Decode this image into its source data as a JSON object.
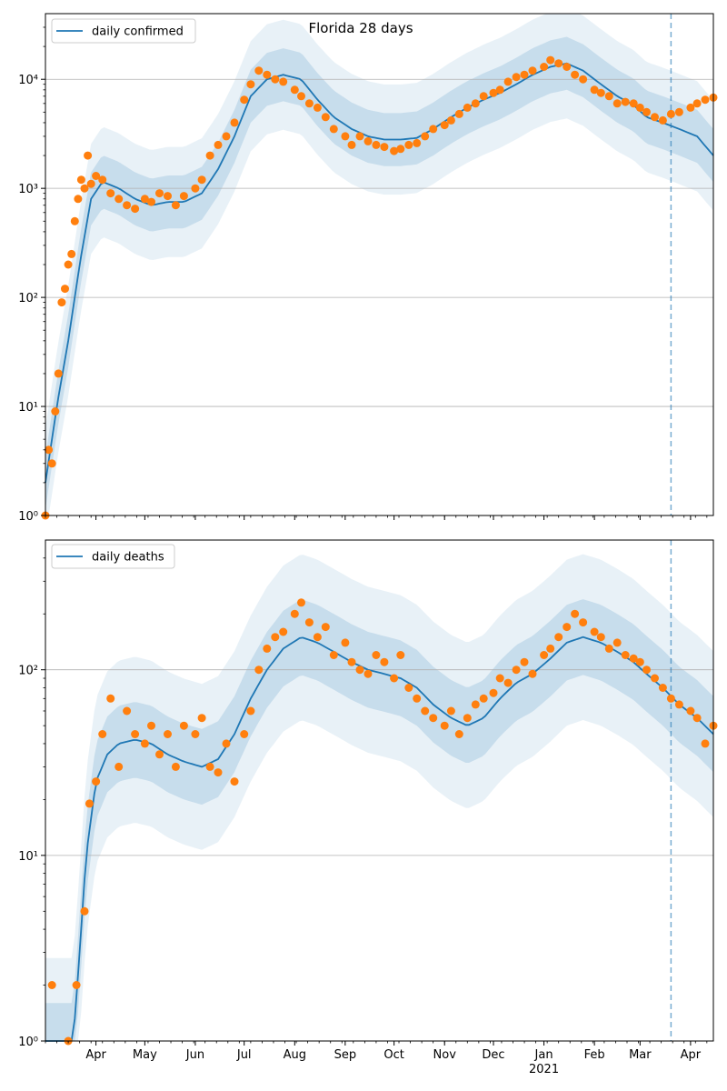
{
  "figure_title": "Florida 28 days",
  "colors": {
    "model_line": "#1f77b4",
    "band": "#1f77b4",
    "observed": "#ff7f0e",
    "grid": "#b0b0b0",
    "forecast_marker": "#1f77b4"
  },
  "chart_data": [
    {
      "type": "line",
      "title": "Florida 28 days",
      "legend": [
        "daily confirmed"
      ],
      "legend_placement": "top-left",
      "yscale": "log",
      "ylim": [
        1,
        40000
      ],
      "yticks": [
        {
          "value": 1,
          "label": "10⁰"
        },
        {
          "value": 10,
          "label": "10¹"
        },
        {
          "value": 100,
          "label": "10²"
        },
        {
          "value": 1000,
          "label": "10³"
        },
        {
          "value": 10000,
          "label": "10⁴"
        }
      ],
      "grid": "horizontal",
      "xlim": [
        "2020-03-01",
        "2021-04-15"
      ],
      "forecast_start": "2021-03-20",
      "series": [
        {
          "name": "daily confirmed",
          "kind": "model-median",
          "x": [
            "2020-03-01",
            "2020-03-08",
            "2020-03-15",
            "2020-03-22",
            "2020-03-29",
            "2020-04-05",
            "2020-04-15",
            "2020-04-25",
            "2020-05-05",
            "2020-05-15",
            "2020-05-25",
            "2020-06-05",
            "2020-06-15",
            "2020-06-25",
            "2020-07-05",
            "2020-07-15",
            "2020-07-25",
            "2020-08-05",
            "2020-08-15",
            "2020-08-25",
            "2020-09-05",
            "2020-09-15",
            "2020-09-25",
            "2020-10-05",
            "2020-10-15",
            "2020-10-25",
            "2020-11-05",
            "2020-11-15",
            "2020-11-25",
            "2020-12-05",
            "2020-12-15",
            "2020-12-25",
            "2021-01-05",
            "2021-01-15",
            "2021-01-25",
            "2021-02-05",
            "2021-02-15",
            "2021-02-25",
            "2021-03-05",
            "2021-03-15",
            "2021-03-25",
            "2021-04-05",
            "2021-04-15"
          ],
          "y": [
            2,
            10,
            40,
            200,
            800,
            1150,
            1000,
            800,
            700,
            750,
            750,
            900,
            1500,
            3000,
            7000,
            10000,
            11000,
            10000,
            6500,
            4500,
            3500,
            3000,
            2800,
            2800,
            2900,
            3500,
            4500,
            5500,
            6500,
            7500,
            9000,
            11000,
            13000,
            14000,
            12000,
            9000,
            7000,
            5800,
            4500,
            4000,
            3500,
            3000,
            2000
          ]
        },
        {
          "name": "observed daily confirmed",
          "kind": "points",
          "x": [
            "2020-03-01",
            "2020-03-03",
            "2020-03-05",
            "2020-03-07",
            "2020-03-09",
            "2020-03-11",
            "2020-03-13",
            "2020-03-15",
            "2020-03-17",
            "2020-03-19",
            "2020-03-21",
            "2020-03-23",
            "2020-03-25",
            "2020-03-27",
            "2020-03-29",
            "2020-04-01",
            "2020-04-05",
            "2020-04-10",
            "2020-04-15",
            "2020-04-20",
            "2020-04-25",
            "2020-05-01",
            "2020-05-05",
            "2020-05-10",
            "2020-05-15",
            "2020-05-20",
            "2020-05-25",
            "2020-06-01",
            "2020-06-05",
            "2020-06-10",
            "2020-06-15",
            "2020-06-20",
            "2020-06-25",
            "2020-07-01",
            "2020-07-05",
            "2020-07-10",
            "2020-07-15",
            "2020-07-20",
            "2020-07-25",
            "2020-08-01",
            "2020-08-05",
            "2020-08-10",
            "2020-08-15",
            "2020-08-20",
            "2020-08-25",
            "2020-09-01",
            "2020-09-05",
            "2020-09-10",
            "2020-09-15",
            "2020-09-20",
            "2020-09-25",
            "2020-10-01",
            "2020-10-05",
            "2020-10-10",
            "2020-10-15",
            "2020-10-20",
            "2020-10-25",
            "2020-11-01",
            "2020-11-05",
            "2020-11-10",
            "2020-11-15",
            "2020-11-20",
            "2020-11-25",
            "2020-12-01",
            "2020-12-05",
            "2020-12-10",
            "2020-12-15",
            "2020-12-20",
            "2020-12-25",
            "2021-01-01",
            "2021-01-05",
            "2021-01-10",
            "2021-01-15",
            "2021-01-20",
            "2021-01-25",
            "2021-02-01",
            "2021-02-05",
            "2021-02-10",
            "2021-02-15",
            "2021-02-20",
            "2021-02-25",
            "2021-03-01",
            "2021-03-05",
            "2021-03-10",
            "2021-03-15",
            "2021-03-20",
            "2021-03-25",
            "2021-04-01",
            "2021-04-05",
            "2021-04-10",
            "2021-04-15"
          ],
          "y": [
            1,
            4,
            3,
            9,
            20,
            90,
            120,
            200,
            250,
            500,
            800,
            1200,
            1000,
            2000,
            1100,
            1300,
            1200,
            900,
            800,
            700,
            650,
            800,
            750,
            900,
            850,
            700,
            850,
            1000,
            1200,
            2000,
            2500,
            3000,
            4000,
            6500,
            9000,
            12000,
            11000,
            10000,
            9500,
            8000,
            7000,
            6000,
            5500,
            4500,
            3500,
            3000,
            2500,
            3000,
            2700,
            2500,
            2400,
            2200,
            2300,
            2500,
            2600,
            3000,
            3500,
            3800,
            4200,
            4800,
            5500,
            6000,
            7000,
            7500,
            8000,
            9500,
            10500,
            11000,
            12000,
            13000,
            15000,
            14000,
            13000,
            11000,
            10000,
            8000,
            7500,
            7000,
            6000,
            6200,
            6000,
            5500,
            5000,
            4500,
            4200,
            4800,
            5000,
            5500,
            6000,
            6500,
            6800
          ]
        }
      ]
    },
    {
      "type": "line",
      "title": "",
      "legend": [
        "daily deaths"
      ],
      "legend_placement": "top-left",
      "yscale": "log",
      "ylim": [
        1,
        500
      ],
      "yticks": [
        {
          "value": 1,
          "label": "10⁰"
        },
        {
          "value": 10,
          "label": "10¹"
        },
        {
          "value": 100,
          "label": "10²"
        }
      ],
      "grid": "horizontal",
      "xlim": [
        "2020-03-01",
        "2021-04-15"
      ],
      "xticks": [
        {
          "date": "2020-04-01",
          "label": "Apr"
        },
        {
          "date": "2020-05-01",
          "label": "May"
        },
        {
          "date": "2020-06-01",
          "label": "Jun"
        },
        {
          "date": "2020-07-01",
          "label": "Jul"
        },
        {
          "date": "2020-08-01",
          "label": "Aug"
        },
        {
          "date": "2020-09-01",
          "label": "Sep"
        },
        {
          "date": "2020-10-01",
          "label": "Oct"
        },
        {
          "date": "2020-11-01",
          "label": "Nov"
        },
        {
          "date": "2020-12-01",
          "label": "Dec"
        },
        {
          "date": "2021-01-01",
          "label": "Jan"
        },
        {
          "date": "2021-02-01",
          "label": "Feb"
        },
        {
          "date": "2021-03-01",
          "label": "Mar"
        },
        {
          "date": "2021-04-01",
          "label": "Apr"
        }
      ],
      "year_label": {
        "date": "2021-01-01",
        "label": "2021"
      },
      "forecast_start": "2021-03-20",
      "series": [
        {
          "name": "daily deaths",
          "kind": "model-median",
          "x": [
            "2020-03-01",
            "2020-03-12",
            "2020-03-18",
            "2020-03-22",
            "2020-03-26",
            "2020-04-01",
            "2020-04-08",
            "2020-04-15",
            "2020-04-25",
            "2020-05-05",
            "2020-05-15",
            "2020-05-25",
            "2020-06-05",
            "2020-06-15",
            "2020-06-25",
            "2020-07-05",
            "2020-07-15",
            "2020-07-25",
            "2020-08-05",
            "2020-08-15",
            "2020-08-25",
            "2020-09-05",
            "2020-09-15",
            "2020-09-25",
            "2020-10-05",
            "2020-10-15",
            "2020-10-25",
            "2020-11-05",
            "2020-11-15",
            "2020-11-25",
            "2020-12-05",
            "2020-12-15",
            "2020-12-25",
            "2021-01-05",
            "2021-01-15",
            "2021-01-25",
            "2021-02-05",
            "2021-02-15",
            "2021-02-25",
            "2021-03-05",
            "2021-03-15",
            "2021-03-25",
            "2021-04-05",
            "2021-04-15"
          ],
          "y": [
            1,
            1,
            1,
            3,
            10,
            25,
            35,
            40,
            42,
            40,
            35,
            32,
            30,
            33,
            45,
            70,
            100,
            130,
            150,
            140,
            125,
            110,
            100,
            95,
            90,
            80,
            65,
            55,
            50,
            55,
            70,
            85,
            95,
            115,
            140,
            150,
            140,
            125,
            110,
            95,
            80,
            65,
            55,
            45
          ]
        },
        {
          "name": "observed daily deaths",
          "kind": "points",
          "x": [
            "2020-03-05",
            "2020-03-15",
            "2020-03-20",
            "2020-03-25",
            "2020-03-28",
            "2020-04-01",
            "2020-04-05",
            "2020-04-10",
            "2020-04-15",
            "2020-04-20",
            "2020-04-25",
            "2020-05-01",
            "2020-05-05",
            "2020-05-10",
            "2020-05-15",
            "2020-05-20",
            "2020-05-25",
            "2020-06-01",
            "2020-06-05",
            "2020-06-10",
            "2020-06-15",
            "2020-06-20",
            "2020-06-25",
            "2020-07-01",
            "2020-07-05",
            "2020-07-10",
            "2020-07-15",
            "2020-07-20",
            "2020-07-25",
            "2020-08-01",
            "2020-08-05",
            "2020-08-10",
            "2020-08-15",
            "2020-08-20",
            "2020-08-25",
            "2020-09-01",
            "2020-09-05",
            "2020-09-10",
            "2020-09-15",
            "2020-09-20",
            "2020-09-25",
            "2020-10-01",
            "2020-10-05",
            "2020-10-10",
            "2020-10-15",
            "2020-10-20",
            "2020-10-25",
            "2020-11-01",
            "2020-11-05",
            "2020-11-10",
            "2020-11-15",
            "2020-11-20",
            "2020-11-25",
            "2020-12-01",
            "2020-12-05",
            "2020-12-10",
            "2020-12-15",
            "2020-12-20",
            "2020-12-25",
            "2021-01-01",
            "2021-01-05",
            "2021-01-10",
            "2021-01-15",
            "2021-01-20",
            "2021-01-25",
            "2021-02-01",
            "2021-02-05",
            "2021-02-10",
            "2021-02-15",
            "2021-02-20",
            "2021-02-25",
            "2021-03-01",
            "2021-03-05",
            "2021-03-10",
            "2021-03-15",
            "2021-03-20",
            "2021-03-25",
            "2021-04-01",
            "2021-04-05",
            "2021-04-10",
            "2021-04-15"
          ],
          "y": [
            2,
            1,
            2,
            5,
            19,
            25,
            45,
            70,
            30,
            60,
            45,
            40,
            50,
            35,
            45,
            30,
            50,
            45,
            55,
            30,
            28,
            40,
            25,
            45,
            60,
            100,
            130,
            150,
            160,
            200,
            230,
            180,
            150,
            170,
            120,
            140,
            110,
            100,
            95,
            120,
            110,
            90,
            120,
            80,
            70,
            60,
            55,
            50,
            60,
            45,
            55,
            65,
            70,
            75,
            90,
            85,
            100,
            110,
            95,
            120,
            130,
            150,
            170,
            200,
            180,
            160,
            150,
            130,
            140,
            120,
            115,
            110,
            100,
            90,
            80,
            70,
            65,
            60,
            55,
            40,
            50
          ]
        }
      ]
    }
  ]
}
